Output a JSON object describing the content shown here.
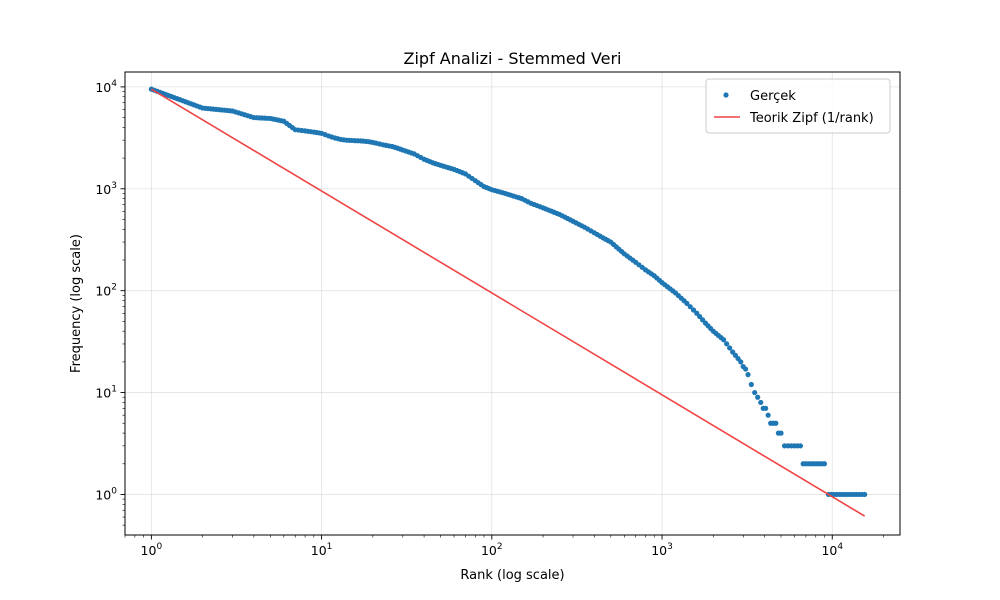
{
  "chart_data": {
    "type": "scatter",
    "title": "Zipf Analizi - Stemmed Veri",
    "xlabel": "Rank (log scale)",
    "ylabel": "Frequency (log scale)",
    "xscale": "log",
    "yscale": "log",
    "xlim": [
      0.7,
      25000
    ],
    "ylim": [
      0.4,
      14000
    ],
    "xticks": [
      1,
      10,
      100,
      1000,
      10000
    ],
    "yticks": [
      1,
      10,
      100,
      1000,
      10000
    ],
    "grid": true,
    "legend_position": "top-right",
    "series": [
      {
        "name": "Gerçek",
        "kind": "points",
        "color": "#1f77b4",
        "points": [
          [
            1,
            9500
          ],
          [
            2,
            6200
          ],
          [
            3,
            5800
          ],
          [
            4,
            5000
          ],
          [
            5,
            4900
          ],
          [
            6,
            4600
          ],
          [
            7,
            3800
          ],
          [
            8,
            3700
          ],
          [
            9,
            3600
          ],
          [
            10,
            3500
          ],
          [
            11,
            3300
          ],
          [
            12,
            3150
          ],
          [
            13,
            3050
          ],
          [
            14,
            3000
          ],
          [
            15,
            2980
          ],
          [
            17,
            2950
          ],
          [
            19,
            2900
          ],
          [
            21,
            2800
          ],
          [
            23,
            2700
          ],
          [
            26,
            2600
          ],
          [
            28,
            2500
          ],
          [
            30,
            2400
          ],
          [
            35,
            2200
          ],
          [
            40,
            1950
          ],
          [
            45,
            1800
          ],
          [
            50,
            1700
          ],
          [
            60,
            1550
          ],
          [
            70,
            1400
          ],
          [
            80,
            1200
          ],
          [
            90,
            1050
          ],
          [
            100,
            980
          ],
          [
            120,
            900
          ],
          [
            150,
            800
          ],
          [
            170,
            720
          ],
          [
            200,
            650
          ],
          [
            250,
            560
          ],
          [
            300,
            480
          ],
          [
            350,
            420
          ],
          [
            400,
            370
          ],
          [
            450,
            330
          ],
          [
            500,
            300
          ],
          [
            600,
            230
          ],
          [
            700,
            190
          ],
          [
            800,
            160
          ],
          [
            900,
            140
          ],
          [
            1000,
            120
          ],
          [
            1200,
            95
          ],
          [
            1400,
            75
          ],
          [
            1600,
            60
          ],
          [
            1800,
            48
          ],
          [
            2000,
            40
          ],
          [
            2300,
            33
          ],
          [
            2600,
            25
          ],
          [
            2900,
            20
          ],
          [
            3200,
            15
          ],
          [
            3500,
            10
          ],
          [
            3800,
            8
          ],
          [
            4200,
            6
          ],
          [
            4500,
            5
          ],
          [
            5000,
            4
          ],
          [
            5500,
            3
          ],
          [
            6500,
            3
          ],
          [
            7000,
            2
          ],
          [
            9000,
            2
          ],
          [
            9500,
            1
          ],
          [
            15500,
            1
          ]
        ]
      },
      {
        "name": "Teorik Zipf (1/rank)",
        "kind": "line",
        "color": "#ef4444",
        "points": [
          [
            1,
            9500
          ],
          [
            15500,
            0.613
          ]
        ]
      }
    ]
  }
}
